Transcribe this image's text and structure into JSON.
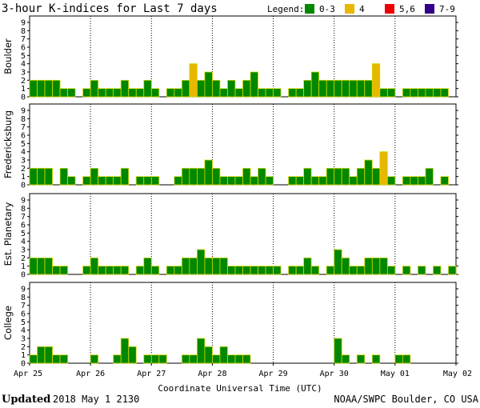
{
  "chart_data": {
    "type": "bar",
    "title": "3-hour K-indices for Last 7 days",
    "legend": {
      "label": "Legend:",
      "items": [
        {
          "label": "0-3",
          "color": "#008800"
        },
        {
          "label": "4",
          "color": "#e8b800"
        },
        {
          "label": "5,6",
          "color": "#ee0000"
        },
        {
          "label": "7-9",
          "color": "#330088"
        }
      ]
    },
    "xlabel": "Coordinate Universal Time (UTC)",
    "x_ticks": [
      "Apr 25",
      "Apr 26",
      "Apr 27",
      "Apr 28",
      "Apr 29",
      "Apr 30",
      "May 01",
      "May 02"
    ],
    "y_ticks": [
      "0",
      "1",
      "2",
      "3",
      "4",
      "5",
      "6",
      "7",
      "8",
      "9"
    ],
    "ylim": [
      0,
      9
    ],
    "panels": [
      {
        "name": "Boulder",
        "values": [
          2,
          2,
          2,
          2,
          1,
          1,
          0,
          1,
          2,
          1,
          1,
          1,
          2,
          1,
          1,
          2,
          1,
          0,
          1,
          1,
          2,
          4,
          2,
          3,
          2,
          1,
          2,
          1,
          2,
          3,
          1,
          1,
          1,
          0,
          1,
          1,
          2,
          3,
          2,
          2,
          2,
          2,
          2,
          2,
          2,
          4,
          1,
          1,
          0,
          1,
          1,
          1,
          1,
          1,
          1,
          0
        ]
      },
      {
        "name": "Fredericksburg",
        "values": [
          2,
          2,
          2,
          0,
          2,
          1,
          0,
          1,
          2,
          1,
          1,
          1,
          2,
          0,
          1,
          1,
          1,
          0,
          0,
          1,
          2,
          2,
          2,
          3,
          2,
          1,
          1,
          1,
          2,
          1,
          2,
          1,
          0,
          0,
          1,
          1,
          2,
          1,
          1,
          2,
          2,
          2,
          1,
          2,
          3,
          2,
          4,
          1,
          0,
          1,
          1,
          1,
          2,
          0,
          1,
          0
        ]
      },
      {
        "name": "Est. Planetary",
        "values": [
          2,
          2,
          2,
          1,
          1,
          0,
          0,
          1,
          2,
          1,
          1,
          1,
          1,
          0,
          1,
          2,
          1,
          0,
          1,
          1,
          2,
          2,
          3,
          2,
          2,
          2,
          1,
          1,
          1,
          1,
          1,
          1,
          1,
          0,
          1,
          1,
          2,
          1,
          0,
          1,
          3,
          2,
          1,
          1,
          2,
          2,
          2,
          1,
          0,
          1,
          0,
          1,
          0,
          1,
          0,
          1
        ]
      },
      {
        "name": "College",
        "values": [
          1,
          2,
          2,
          1,
          1,
          0,
          0,
          0,
          1,
          0,
          0,
          1,
          3,
          2,
          0,
          1,
          1,
          1,
          0,
          0,
          1,
          1,
          3,
          2,
          1,
          2,
          1,
          1,
          1,
          0,
          0,
          0,
          0,
          0,
          0,
          0,
          0,
          0,
          0,
          0,
          3,
          1,
          0,
          1,
          0,
          1,
          0,
          0,
          1,
          1,
          0,
          0,
          0,
          0,
          0,
          0
        ]
      }
    ]
  },
  "footer": {
    "updated_label": "Updated",
    "updated_value": "2018 May  1 2130",
    "credit": "NOAA/SWPC Boulder, CO USA"
  }
}
